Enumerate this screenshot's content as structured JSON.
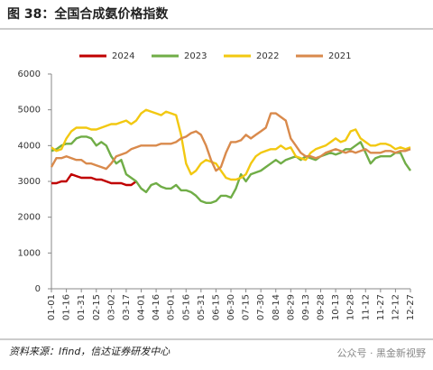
{
  "chart_data": {
    "type": "line",
    "title": "图 38：全国合成氨价格指数",
    "source": "资料来源：Ifind，信达证券研发中心",
    "watermark": "公众号 · 黑金新视野",
    "categories": [
      "01-01",
      null,
      null,
      "01-16",
      null,
      null,
      "01-31",
      null,
      null,
      "02-15",
      null,
      null,
      "03-02",
      null,
      null,
      "03-17",
      null,
      null,
      "04-01",
      null,
      null,
      "04-16",
      null,
      null,
      "05-01",
      null,
      null,
      "05-16",
      null,
      null,
      "05-31",
      null,
      null,
      "06-15",
      null,
      null,
      "06-30",
      null,
      null,
      "07-15",
      null,
      null,
      "07-30",
      null,
      null,
      "08-14",
      null,
      null,
      "08-29",
      null,
      null,
      "09-13",
      null,
      null,
      "09-28",
      null,
      null,
      "10-13",
      null,
      null,
      "10-28",
      null,
      null,
      "11-12",
      null,
      null,
      "11-27",
      null,
      null,
      "12-12",
      null,
      null,
      "12-27"
    ],
    "series": [
      {
        "name": "2024",
        "color": "#c00000",
        "values": [
          2950,
          2950,
          3000,
          3000,
          3200,
          3150,
          3100,
          3100,
          3100,
          3050,
          3050,
          3000,
          2950,
          2950,
          2950,
          2900,
          2900,
          3000,
          null,
          null,
          null,
          null,
          null,
          null,
          null,
          null,
          null,
          null,
          null,
          null,
          null,
          null,
          null,
          null,
          null,
          null,
          null,
          null,
          null,
          null,
          null,
          null,
          null,
          null,
          null,
          null,
          null,
          null,
          null,
          null,
          null,
          null,
          null,
          null,
          null,
          null,
          null,
          null,
          null,
          null,
          null,
          null,
          null,
          null,
          null,
          null,
          null,
          null,
          null,
          null,
          null,
          null,
          null
        ]
      },
      {
        "name": "2023",
        "color": "#70ad47",
        "values": [
          3850,
          3900,
          4000,
          4050,
          4050,
          4200,
          4250,
          4250,
          4200,
          4000,
          4100,
          4000,
          3700,
          3500,
          3600,
          3200,
          3100,
          3000,
          2800,
          2700,
          2900,
          2950,
          2850,
          2800,
          2800,
          2900,
          2750,
          2750,
          2700,
          2600,
          2450,
          2400,
          2400,
          2450,
          2600,
          2600,
          2550,
          2800,
          3200,
          3000,
          3200,
          3250,
          3300,
          3400,
          3500,
          3600,
          3500,
          3600,
          3650,
          3700,
          3600,
          3700,
          3650,
          3600,
          3700,
          3750,
          3800,
          3750,
          3800,
          3900,
          3900,
          4000,
          4100,
          3800,
          3500,
          3650,
          3700,
          3700,
          3700,
          3800,
          3800,
          3500,
          3300
        ]
      },
      {
        "name": "2022",
        "color": "#f2c811",
        "values": [
          3950,
          3850,
          3900,
          4200,
          4400,
          4500,
          4500,
          4500,
          4450,
          4450,
          4500,
          4550,
          4600,
          4600,
          4650,
          4700,
          4600,
          4700,
          4900,
          5000,
          4950,
          4900,
          4850,
          4950,
          4900,
          4850,
          4300,
          3500,
          3200,
          3300,
          3500,
          3600,
          3550,
          3500,
          3300,
          3100,
          3050,
          3050,
          3100,
          3200,
          3500,
          3700,
          3800,
          3850,
          3900,
          3900,
          4000,
          3900,
          3950,
          3700,
          3650,
          3600,
          3800,
          3900,
          3950,
          4000,
          4100,
          4200,
          4100,
          4150,
          4400,
          4450,
          4200,
          4100,
          4000,
          4000,
          4050,
          4050,
          4000,
          3900,
          3950,
          3900,
          3950
        ]
      },
      {
        "name": "2021",
        "color": "#d98a4c",
        "values": [
          3400,
          3650,
          3650,
          3700,
          3650,
          3600,
          3600,
          3500,
          3500,
          3450,
          3400,
          3350,
          3500,
          3700,
          3750,
          3800,
          3900,
          3950,
          4000,
          4000,
          4000,
          4000,
          4050,
          4050,
          4050,
          4100,
          4200,
          4250,
          4350,
          4400,
          4300,
          4000,
          3600,
          3300,
          3400,
          3800,
          4100,
          4100,
          4150,
          4300,
          4200,
          4300,
          4400,
          4500,
          4900,
          4900,
          4800,
          4700,
          4200,
          4000,
          3800,
          3700,
          3700,
          3650,
          3700,
          3800,
          3850,
          3900,
          3850,
          3800,
          3850,
          3800,
          3850,
          3900,
          3800,
          3800,
          3800,
          3850,
          3850,
          3800,
          3850,
          3850,
          3900
        ]
      }
    ],
    "ylim": [
      0,
      6000
    ],
    "yticks": [
      0,
      1000,
      2000,
      3000,
      4000,
      5000,
      6000
    ],
    "legend": "top"
  }
}
